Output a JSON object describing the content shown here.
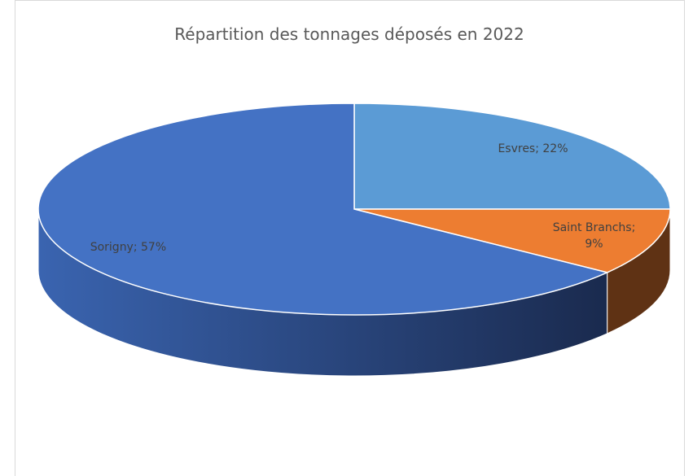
{
  "chart_data": {
    "type": "pie3d",
    "title": "Répartition des tonnages déposés en 2022",
    "values": [
      22,
      9,
      57
    ],
    "value_labels": [
      "Esvres; 22%",
      "Saint Branchs; 9%",
      "Sorigny; 57%"
    ],
    "colors": [
      "#5b9bd5",
      "#ed7d31",
      "#4472c4"
    ]
  }
}
